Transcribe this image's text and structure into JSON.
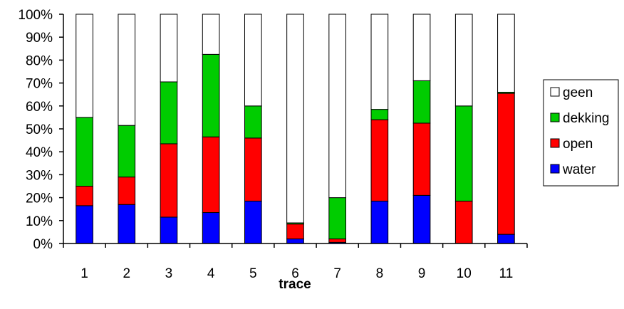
{
  "chart_data": {
    "type": "bar",
    "stacked": true,
    "percent": true,
    "title": "",
    "xlabel": "trace",
    "ylabel": "",
    "ylim": [
      0,
      100
    ],
    "yticks": [
      "0%",
      "10%",
      "20%",
      "30%",
      "40%",
      "50%",
      "60%",
      "70%",
      "80%",
      "90%",
      "100%"
    ],
    "categories": [
      "1",
      "2",
      "3",
      "4",
      "5",
      "6",
      "7",
      "8",
      "9",
      "10",
      "11"
    ],
    "series": [
      {
        "name": "water",
        "color": "#0000ff",
        "values": [
          16.5,
          17,
          11.5,
          13.5,
          18.5,
          2,
          0.5,
          18.5,
          21,
          0,
          4
        ]
      },
      {
        "name": "open",
        "color": "#ff0000",
        "values": [
          8.5,
          12,
          32,
          33,
          27.5,
          6.5,
          1.5,
          35.5,
          31.5,
          18.5,
          61.5
        ]
      },
      {
        "name": "dekking",
        "color": "#00cc00",
        "values": [
          30,
          22.5,
          27,
          36,
          14,
          0.5,
          18,
          4.5,
          18.5,
          41.5,
          0.5
        ]
      },
      {
        "name": "geen",
        "color": "#ffffff",
        "values": [
          45,
          48.5,
          29.5,
          17.5,
          40,
          91,
          80,
          41.5,
          29,
          40,
          34
        ]
      }
    ],
    "legend": {
      "position": "right",
      "order": [
        "geen",
        "dekking",
        "open",
        "water"
      ]
    },
    "grid": false
  }
}
